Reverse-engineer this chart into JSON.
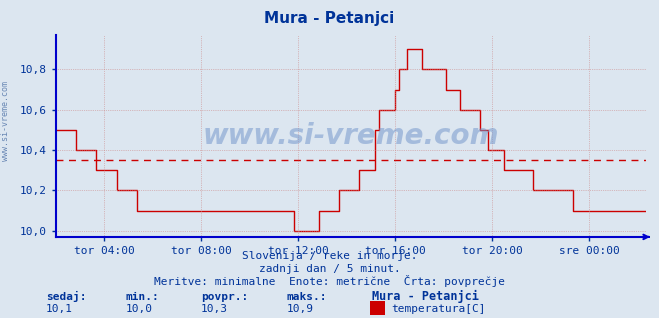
{
  "title": "Mura - Petanjci",
  "background_color": "#dce6f0",
  "plot_bg_color": "#dce6f0",
  "line_color": "#cc0000",
  "avg_line_color": "#cc0000",
  "avg_value": 10.35,
  "ylim": [
    9.97,
    10.97
  ],
  "yticks": [
    10.0,
    10.2,
    10.4,
    10.6,
    10.8
  ],
  "ytick_labels": [
    "10,0",
    "10,2",
    "10,4",
    "10,6",
    "10,8"
  ],
  "grid_color": "#cc8888",
  "title_color": "#003399",
  "axis_color": "#0000cc",
  "tick_color": "#003399",
  "watermark": "www.si-vreme.com",
  "footer_line1": "Slovenija / reke in morje.",
  "footer_line2": "zadnji dan / 5 minut.",
  "footer_line3": "Meritve: minimalne  Enote: metrične  Črta: povprečje",
  "legend_station": "Mura - Petanjci",
  "legend_param": "temperatura[C]",
  "stats_sedaj": "10,1",
  "stats_min": "10,0",
  "stats_povpr": "10,3",
  "stats_maks": "10,9",
  "n_points": 288,
  "x_tick_positions": [
    24,
    72,
    120,
    168,
    216,
    264
  ],
  "x_tick_labels": [
    "tor 04:00",
    "tor 08:00",
    "tor 12:00",
    "tor 16:00",
    "tor 20:00",
    "sre 00:00"
  ],
  "temps": [
    10.5,
    10.5,
    10.5,
    10.5,
    10.5,
    10.5,
    10.5,
    10.5,
    10.5,
    10.5,
    10.4,
    10.4,
    10.4,
    10.4,
    10.4,
    10.4,
    10.4,
    10.4,
    10.4,
    10.4,
    10.3,
    10.3,
    10.3,
    10.3,
    10.3,
    10.3,
    10.3,
    10.3,
    10.3,
    10.3,
    10.2,
    10.2,
    10.2,
    10.2,
    10.2,
    10.2,
    10.2,
    10.2,
    10.2,
    10.2,
    10.1,
    10.1,
    10.1,
    10.1,
    10.1,
    10.1,
    10.1,
    10.1,
    10.1,
    10.1,
    10.1,
    10.1,
    10.1,
    10.1,
    10.1,
    10.1,
    10.1,
    10.1,
    10.1,
    10.1,
    10.1,
    10.1,
    10.1,
    10.1,
    10.1,
    10.1,
    10.1,
    10.1,
    10.1,
    10.1,
    10.1,
    10.1,
    10.1,
    10.1,
    10.1,
    10.1,
    10.1,
    10.1,
    10.1,
    10.1,
    10.1,
    10.1,
    10.1,
    10.1,
    10.1,
    10.1,
    10.1,
    10.1,
    10.1,
    10.1,
    10.1,
    10.1,
    10.1,
    10.1,
    10.1,
    10.1,
    10.1,
    10.1,
    10.1,
    10.1,
    10.1,
    10.1,
    10.1,
    10.1,
    10.1,
    10.1,
    10.1,
    10.1,
    10.1,
    10.1,
    10.1,
    10.1,
    10.1,
    10.1,
    10.1,
    10.1,
    10.1,
    10.1,
    10.0,
    10.0,
    10.0,
    10.0,
    10.0,
    10.0,
    10.0,
    10.0,
    10.0,
    10.0,
    10.0,
    10.0,
    10.1,
    10.1,
    10.1,
    10.1,
    10.1,
    10.1,
    10.1,
    10.1,
    10.1,
    10.1,
    10.2,
    10.2,
    10.2,
    10.2,
    10.2,
    10.2,
    10.2,
    10.2,
    10.2,
    10.2,
    10.3,
    10.3,
    10.3,
    10.3,
    10.3,
    10.3,
    10.3,
    10.3,
    10.5,
    10.5,
    10.6,
    10.6,
    10.6,
    10.6,
    10.6,
    10.6,
    10.6,
    10.6,
    10.7,
    10.7,
    10.8,
    10.8,
    10.8,
    10.8,
    10.9,
    10.9,
    10.9,
    10.9,
    10.9,
    10.9,
    10.9,
    10.8,
    10.8,
    10.8,
    10.8,
    10.8,
    10.8,
    10.8,
    10.8,
    10.8,
    10.8,
    10.8,
    10.8,
    10.7,
    10.7,
    10.7,
    10.7,
    10.7,
    10.7,
    10.7,
    10.6,
    10.6,
    10.6,
    10.6,
    10.6,
    10.6,
    10.6,
    10.6,
    10.6,
    10.6,
    10.5,
    10.5,
    10.5,
    10.5,
    10.4,
    10.4,
    10.4,
    10.4,
    10.4,
    10.4,
    10.4,
    10.4,
    10.3,
    10.3,
    10.3,
    10.3,
    10.3,
    10.3,
    10.3,
    10.3,
    10.3,
    10.3,
    10.3,
    10.3,
    10.3,
    10.3,
    10.2,
    10.2,
    10.2,
    10.2,
    10.2,
    10.2,
    10.2,
    10.2,
    10.2,
    10.2,
    10.2,
    10.2,
    10.2,
    10.2,
    10.2,
    10.2,
    10.2,
    10.2,
    10.2,
    10.2,
    10.1,
    10.1,
    10.1,
    10.1,
    10.1,
    10.1,
    10.1,
    10.1,
    10.1,
    10.1,
    10.1,
    10.1,
    10.1,
    10.1,
    10.1,
    10.1,
    10.1,
    10.1,
    10.1,
    10.1,
    10.1,
    10.1,
    10.1,
    10.1,
    10.1,
    10.1,
    10.1,
    10.1,
    10.1,
    10.1,
    10.1,
    10.1,
    10.1,
    10.1,
    10.1,
    10.1,
    10.1
  ]
}
